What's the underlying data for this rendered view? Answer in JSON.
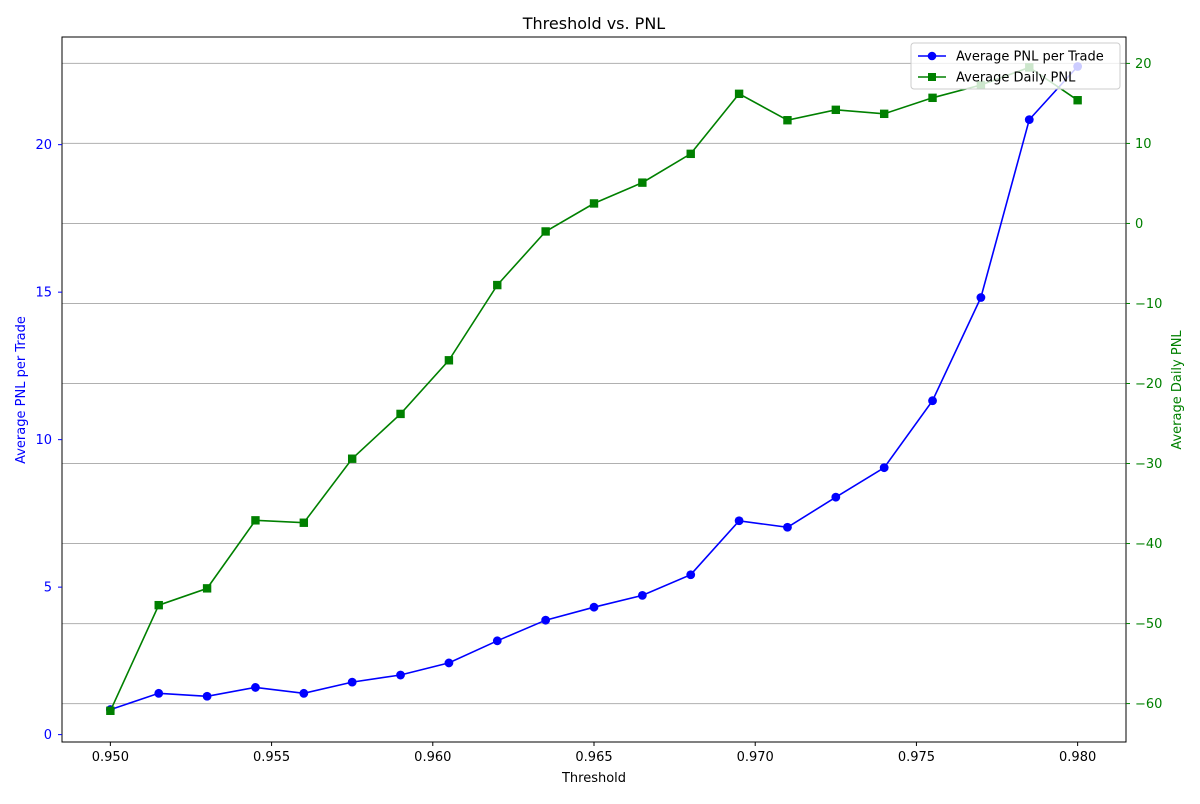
{
  "chart_data": {
    "type": "line",
    "title": "Threshold vs. PNL",
    "xlabel": "Threshold",
    "ylabel_left": "Average PNL per Trade",
    "ylabel_right": "Average Daily PNL",
    "x": [
      0.95,
      0.9515,
      0.953,
      0.9545,
      0.956,
      0.9575,
      0.959,
      0.9605,
      0.962,
      0.9635,
      0.965,
      0.9665,
      0.968,
      0.9695,
      0.971,
      0.9725,
      0.974,
      0.9755,
      0.977,
      0.9785,
      0.98
    ],
    "xlim": [
      0.9485,
      0.9815
    ],
    "xticks": [
      0.95,
      0.955,
      0.96,
      0.965,
      0.97,
      0.975,
      0.98
    ],
    "xtick_labels": [
      "0.950",
      "0.955",
      "0.960",
      "0.965",
      "0.970",
      "0.975",
      "0.980"
    ],
    "ylim_left": [
      -0.25,
      23.65
    ],
    "yticks_left": [
      0,
      5,
      10,
      15,
      20
    ],
    "ytick_labels_left": [
      "0",
      "5",
      "10",
      "15",
      "20"
    ],
    "ylim_right": [
      -64.8,
      23.3
    ],
    "yticks_right": [
      -60,
      -50,
      -40,
      -30,
      -20,
      -10,
      0,
      10,
      20
    ],
    "ytick_labels_right": [
      "−60",
      "−50",
      "−40",
      "−30",
      "−20",
      "−10",
      "0",
      "10",
      "20"
    ],
    "grid": "horizontal lines at right-axis ticks",
    "legend_position": "top-right",
    "series": [
      {
        "name": "Average PNL per Trade",
        "axis": "left",
        "marker": "circle",
        "color": "#0000ff",
        "values": [
          0.85,
          1.4,
          1.3,
          1.6,
          1.4,
          1.78,
          2.02,
          2.43,
          3.18,
          3.88,
          4.32,
          4.72,
          5.42,
          7.25,
          7.03,
          8.05,
          9.05,
          11.32,
          14.82,
          20.85,
          22.65
        ]
      },
      {
        "name": "Average Daily PNL",
        "axis": "right",
        "marker": "square",
        "color": "#008000",
        "values": [
          -60.9,
          -47.7,
          -45.6,
          -37.1,
          -37.4,
          -29.4,
          -23.8,
          -17.1,
          -7.7,
          -1.0,
          2.5,
          5.1,
          8.7,
          16.2,
          12.9,
          14.2,
          13.7,
          15.7,
          17.3,
          19.5,
          15.4
        ]
      }
    ]
  }
}
